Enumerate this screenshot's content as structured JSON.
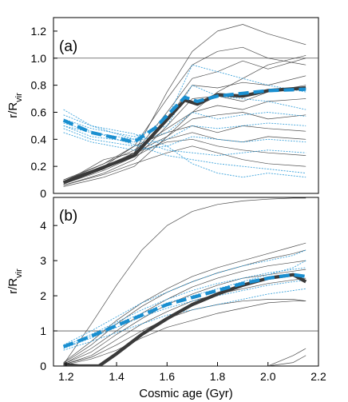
{
  "chart_data": [
    {
      "type": "line",
      "panel": "(a)",
      "xlabel": "",
      "ylabel": "r/R_vir",
      "xlim": [
        1.15,
        2.2
      ],
      "ylim": [
        0,
        1.3
      ],
      "yticks": [
        "0",
        "0.2",
        "0.4",
        "0.6",
        "0.8",
        "1.0",
        "1.2"
      ],
      "xticks": [],
      "reference_line": 1.0,
      "grid": false,
      "series": [
        {
          "style": "mean-black",
          "color": "#3a3a3a",
          "x": [
            1.19,
            1.47,
            1.67,
            1.72,
            1.8,
            1.9,
            2.0,
            2.15
          ],
          "y": [
            0.08,
            0.28,
            0.69,
            0.66,
            0.73,
            0.72,
            0.76,
            0.78
          ]
        },
        {
          "style": "mean-blue",
          "color": "#1a8fd0",
          "x": [
            1.19,
            1.3,
            1.47,
            1.55,
            1.67,
            1.72,
            1.8,
            1.9,
            2.0,
            2.15
          ],
          "y": [
            0.54,
            0.45,
            0.38,
            0.48,
            0.71,
            0.68,
            0.72,
            0.74,
            0.76,
            0.77
          ]
        },
        {
          "style": "thin-black",
          "x": [
            1.19,
            1.35,
            1.47,
            1.6,
            1.7,
            1.8,
            1.9,
            2.0,
            2.15
          ],
          "y": [
            0.09,
            0.2,
            0.3,
            0.75,
            1.05,
            1.2,
            1.25,
            1.18,
            1.1
          ]
        },
        {
          "style": "thin-black",
          "x": [
            1.19,
            1.35,
            1.47,
            1.6,
            1.7,
            1.8,
            1.9,
            2.0,
            2.15
          ],
          "y": [
            0.1,
            0.22,
            0.35,
            0.7,
            0.95,
            1.05,
            1.08,
            1.0,
            0.95
          ]
        },
        {
          "style": "thin-black",
          "x": [
            1.19,
            1.35,
            1.47,
            1.6,
            1.7,
            1.8,
            1.9,
            2.0,
            2.15
          ],
          "y": [
            0.07,
            0.18,
            0.3,
            0.6,
            0.85,
            0.9,
            0.98,
            0.92,
            1.0
          ]
        },
        {
          "style": "thin-black",
          "x": [
            1.19,
            1.35,
            1.47,
            1.6,
            1.7,
            1.8,
            1.9,
            2.0,
            2.15
          ],
          "y": [
            0.08,
            0.2,
            0.28,
            0.55,
            0.8,
            0.78,
            0.82,
            0.8,
            0.87
          ]
        },
        {
          "style": "thin-black",
          "x": [
            1.19,
            1.35,
            1.47,
            1.6,
            1.7,
            1.8,
            1.9,
            2.0,
            2.15
          ],
          "y": [
            0.06,
            0.15,
            0.25,
            0.5,
            0.7,
            0.72,
            0.68,
            0.75,
            0.8
          ]
        },
        {
          "style": "thin-black",
          "x": [
            1.19,
            1.35,
            1.47,
            1.6,
            1.7,
            1.8,
            1.9,
            2.0,
            2.15
          ],
          "y": [
            0.09,
            0.22,
            0.32,
            0.48,
            0.6,
            0.65,
            0.62,
            0.68,
            0.7
          ]
        },
        {
          "style": "thin-black",
          "x": [
            1.19,
            1.35,
            1.47,
            1.6,
            1.7,
            1.8,
            1.9,
            2.0,
            2.15
          ],
          "y": [
            0.05,
            0.12,
            0.2,
            0.42,
            0.55,
            0.58,
            0.6,
            0.55,
            0.58
          ]
        },
        {
          "style": "thin-black",
          "x": [
            1.19,
            1.35,
            1.47,
            1.6,
            1.7,
            1.8,
            1.9,
            2.0,
            2.15
          ],
          "y": [
            0.1,
            0.2,
            0.35,
            0.45,
            0.5,
            0.45,
            0.5,
            0.48,
            0.46
          ]
        },
        {
          "style": "thin-black",
          "x": [
            1.19,
            1.35,
            1.47,
            1.6,
            1.7,
            1.8,
            1.9,
            2.0,
            2.15
          ],
          "y": [
            0.07,
            0.17,
            0.27,
            0.4,
            0.45,
            0.4,
            0.38,
            0.42,
            0.4
          ]
        },
        {
          "style": "thin-black",
          "x": [
            1.19,
            1.35,
            1.47,
            1.6,
            1.7,
            1.8,
            1.9,
            2.0,
            2.15
          ],
          "y": [
            0.08,
            0.25,
            0.3,
            0.38,
            0.4,
            0.35,
            0.32,
            0.3,
            0.28
          ]
        },
        {
          "style": "thin-black",
          "x": [
            1.19,
            1.35,
            1.47,
            1.6,
            1.7,
            1.8,
            1.9,
            2.0,
            2.15
          ],
          "y": [
            0.06,
            0.14,
            0.22,
            0.3,
            0.35,
            0.3,
            0.25,
            0.22,
            0.2
          ]
        },
        {
          "style": "thin-black",
          "x": [
            1.19,
            1.35,
            1.47,
            1.6,
            1.7,
            1.8,
            1.9,
            2.0,
            2.15
          ],
          "y": [
            0.09,
            0.18,
            0.3,
            0.42,
            0.6,
            0.75,
            0.85,
            0.95,
            1.02
          ]
        },
        {
          "style": "thin-blue",
          "x": [
            1.19,
            1.3,
            1.47,
            1.6,
            1.7,
            1.8,
            1.9,
            2.0,
            2.15
          ],
          "y": [
            0.62,
            0.5,
            0.4,
            0.55,
            0.95,
            0.9,
            0.85,
            0.8,
            0.75
          ]
        },
        {
          "style": "thin-blue",
          "x": [
            1.19,
            1.3,
            1.47,
            1.6,
            1.7,
            1.8,
            1.9,
            2.0,
            2.15
          ],
          "y": [
            0.55,
            0.48,
            0.42,
            0.5,
            0.8,
            0.72,
            0.7,
            0.68,
            0.62
          ]
        },
        {
          "style": "thin-blue",
          "x": [
            1.19,
            1.3,
            1.47,
            1.6,
            1.7,
            1.8,
            1.9,
            2.0,
            2.15
          ],
          "y": [
            0.5,
            0.42,
            0.38,
            0.45,
            0.6,
            0.55,
            0.58,
            0.6,
            0.57
          ]
        },
        {
          "style": "thin-blue",
          "x": [
            1.19,
            1.3,
            1.47,
            1.6,
            1.7,
            1.8,
            1.9,
            2.0,
            2.15
          ],
          "y": [
            0.48,
            0.4,
            0.35,
            0.4,
            0.5,
            0.48,
            0.5,
            0.52,
            0.5
          ]
        },
        {
          "style": "thin-blue",
          "x": [
            1.19,
            1.3,
            1.47,
            1.6,
            1.7,
            1.8,
            1.9,
            2.0,
            2.15
          ],
          "y": [
            0.45,
            0.38,
            0.32,
            0.35,
            0.42,
            0.4,
            0.38,
            0.4,
            0.38
          ]
        },
        {
          "style": "thin-blue",
          "x": [
            1.19,
            1.3,
            1.47,
            1.6,
            1.7,
            1.8,
            1.9,
            2.0,
            2.15
          ],
          "y": [
            0.5,
            0.45,
            0.4,
            0.32,
            0.3,
            0.28,
            0.3,
            0.32,
            0.3
          ]
        },
        {
          "style": "thin-blue",
          "x": [
            1.19,
            1.3,
            1.47,
            1.6,
            1.7,
            1.8,
            1.9,
            2.0,
            2.15
          ],
          "y": [
            0.52,
            0.46,
            0.36,
            0.28,
            0.25,
            0.22,
            0.2,
            0.18,
            0.15
          ]
        },
        {
          "style": "thin-blue",
          "x": [
            1.19,
            1.3,
            1.47,
            1.6,
            1.7,
            1.8,
            1.9,
            2.0,
            2.15
          ],
          "y": [
            0.58,
            0.5,
            0.44,
            0.35,
            0.22,
            0.15,
            0.12,
            0.15,
            0.12
          ]
        }
      ]
    },
    {
      "type": "line",
      "panel": "(b)",
      "xlabel": "Cosmic age (Gyr)",
      "ylabel": "r/R_vir",
      "xlim": [
        1.15,
        2.2
      ],
      "ylim": [
        0,
        4.8
      ],
      "yticks": [
        "0",
        "1",
        "2",
        "3",
        "4"
      ],
      "xticks": [
        "1.2",
        "1.4",
        "1.6",
        "1.8",
        "2.0",
        "2.2"
      ],
      "reference_line": 1.0,
      "grid": false,
      "series": [
        {
          "style": "mean-black",
          "color": "#3a3a3a",
          "x": [
            1.19,
            1.25,
            1.33,
            1.4,
            1.5,
            1.6,
            1.7,
            1.8,
            1.9,
            2.0,
            2.1,
            2.15
          ],
          "y": [
            0.05,
            0.0,
            0.0,
            0.35,
            0.9,
            1.35,
            1.75,
            2.05,
            2.3,
            2.5,
            2.6,
            2.4
          ]
        },
        {
          "style": "mean-blue",
          "color": "#1a8fd0",
          "x": [
            1.19,
            1.3,
            1.4,
            1.5,
            1.6,
            1.7,
            1.8,
            1.9,
            2.0,
            2.1,
            2.15
          ],
          "y": [
            0.55,
            0.85,
            1.15,
            1.45,
            1.75,
            1.95,
            2.15,
            2.35,
            2.5,
            2.6,
            2.55
          ]
        },
        {
          "style": "thin-black",
          "x": [
            1.19,
            1.3,
            1.4,
            1.5,
            1.6,
            1.7,
            1.8,
            1.9,
            2.0,
            2.1,
            2.15
          ],
          "y": [
            0.05,
            1.2,
            2.3,
            3.3,
            4.0,
            4.4,
            4.6,
            4.7,
            4.75,
            4.78,
            4.78
          ]
        },
        {
          "style": "thin-black",
          "x": [
            1.19,
            1.3,
            1.4,
            1.5,
            1.6,
            1.7,
            1.8,
            1.9,
            2.0,
            2.1,
            2.15
          ],
          "y": [
            0.1,
            0.7,
            1.3,
            1.8,
            2.2,
            2.55,
            2.8,
            3.0,
            3.2,
            3.4,
            3.5
          ]
        },
        {
          "style": "thin-black",
          "x": [
            1.19,
            1.3,
            1.4,
            1.5,
            1.6,
            1.7,
            1.8,
            1.9,
            2.0,
            2.1,
            2.15
          ],
          "y": [
            0.08,
            0.6,
            1.2,
            1.7,
            2.1,
            2.4,
            2.65,
            2.85,
            3.05,
            3.2,
            3.3
          ]
        },
        {
          "style": "thin-black",
          "x": [
            1.19,
            1.3,
            1.4,
            1.5,
            1.6,
            1.7,
            1.8,
            1.9,
            2.0,
            2.1,
            2.15
          ],
          "y": [
            0.05,
            0.5,
            1.0,
            1.5,
            1.9,
            2.25,
            2.5,
            2.7,
            2.85,
            2.95,
            3.0
          ]
        },
        {
          "style": "thin-black",
          "x": [
            1.19,
            1.3,
            1.4,
            1.5,
            1.6,
            1.7,
            1.8,
            1.9,
            2.0,
            2.1,
            2.15
          ],
          "y": [
            0.06,
            0.4,
            0.9,
            1.35,
            1.75,
            2.05,
            2.3,
            2.5,
            2.6,
            2.7,
            2.75
          ]
        },
        {
          "style": "thin-black",
          "x": [
            1.19,
            1.3,
            1.4,
            1.5,
            1.6,
            1.7,
            1.8,
            1.9,
            2.0,
            2.1,
            2.15
          ],
          "y": [
            0.04,
            0.3,
            0.75,
            1.2,
            1.55,
            1.85,
            2.05,
            2.2,
            2.35,
            2.45,
            2.5
          ]
        },
        {
          "style": "thin-black",
          "x": [
            1.19,
            1.3,
            1.4,
            1.5,
            1.6,
            1.7,
            1.8,
            1.9,
            2.0,
            2.1,
            2.15
          ],
          "y": [
            0.05,
            0.25,
            0.6,
            1.0,
            1.35,
            1.6,
            1.75,
            1.85,
            1.9,
            1.9,
            1.85
          ]
        },
        {
          "style": "thin-black",
          "x": [
            1.19,
            1.3,
            1.4,
            1.5,
            1.6,
            1.7,
            1.8,
            1.9,
            2.0,
            2.1,
            2.15
          ],
          "y": [
            0.03,
            0.2,
            0.45,
            0.8,
            1.1,
            1.3,
            1.5,
            1.65,
            1.8,
            1.85,
            1.85
          ]
        },
        {
          "style": "thin-black",
          "x": [
            1.19,
            1.3,
            1.4,
            1.5,
            1.6,
            1.7,
            1.8,
            1.9,
            2.0,
            2.1,
            2.15
          ],
          "y": [
            0.02,
            0.0,
            0.0,
            0.0,
            0.0,
            0.0,
            0.0,
            0.0,
            0.0,
            0.3,
            0.5
          ]
        },
        {
          "style": "thin-black",
          "x": [
            1.19,
            1.3,
            1.4,
            1.5,
            1.6,
            1.7,
            1.8,
            1.9,
            2.0,
            2.1,
            2.15
          ],
          "y": [
            0.02,
            0.0,
            0.0,
            0.0,
            0.0,
            0.0,
            0.0,
            0.0,
            0.0,
            0.1,
            0.3
          ]
        },
        {
          "style": "thin-blue",
          "x": [
            1.19,
            1.3,
            1.4,
            1.5,
            1.6,
            1.7,
            1.8,
            1.9,
            2.0,
            2.1,
            2.15
          ],
          "y": [
            0.6,
            1.0,
            1.4,
            1.8,
            2.1,
            2.4,
            2.65,
            2.85,
            3.0,
            3.15,
            3.3
          ]
        },
        {
          "style": "thin-blue",
          "x": [
            1.19,
            1.3,
            1.4,
            1.5,
            1.6,
            1.7,
            1.8,
            1.9,
            2.0,
            2.1,
            2.15
          ],
          "y": [
            0.55,
            0.9,
            1.25,
            1.6,
            1.9,
            2.15,
            2.35,
            2.5,
            2.65,
            2.75,
            2.8
          ]
        },
        {
          "style": "thin-blue",
          "x": [
            1.19,
            1.3,
            1.4,
            1.5,
            1.6,
            1.7,
            1.8,
            1.9,
            2.0,
            2.1,
            2.15
          ],
          "y": [
            0.5,
            0.8,
            1.1,
            1.4,
            1.65,
            1.85,
            2.0,
            2.15,
            2.3,
            2.4,
            2.45
          ]
        },
        {
          "style": "thin-blue",
          "x": [
            1.19,
            1.3,
            1.4,
            1.5,
            1.6,
            1.7,
            1.8,
            1.9,
            2.0,
            2.1,
            2.15
          ],
          "y": [
            0.45,
            0.7,
            0.95,
            1.2,
            1.45,
            1.6,
            1.75,
            1.9,
            2.05,
            2.15,
            2.2
          ]
        },
        {
          "style": "thin-blue",
          "x": [
            1.19,
            1.3,
            1.4,
            1.5,
            1.6,
            1.7,
            1.8,
            1.9,
            2.0,
            2.1,
            2.15
          ],
          "y": [
            0.5,
            0.85,
            1.2,
            1.5,
            1.8,
            2.0,
            2.2,
            2.4,
            2.6,
            2.8,
            3.0
          ]
        }
      ]
    }
  ]
}
